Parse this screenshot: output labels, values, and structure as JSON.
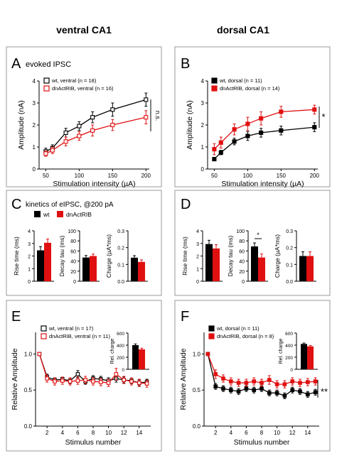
{
  "headers": {
    "left": "ventral CA1",
    "right": "dorsal CA1"
  },
  "colors": {
    "black": "#000000",
    "red": "#e01010",
    "frame": "#999999"
  },
  "panels": {
    "A": {
      "letter": "A",
      "title": "evoked IPSC",
      "legend": [
        "wt, ventral (n = 18)",
        "dnActRIB, ventral (n = 16)"
      ],
      "sig": "n.s."
    },
    "B": {
      "letter": "B",
      "title": "",
      "legend": [
        "wt, dorsal (n = 11)",
        "dnActRIB, dorsal (n = 14)"
      ],
      "sig": "*"
    },
    "C": {
      "letter": "C",
      "title": "kinetics of eIPSC, @200 pA",
      "legend": [
        "wt",
        "dnActRIB"
      ]
    },
    "D": {
      "letter": "D",
      "title": "",
      "legend": []
    },
    "E": {
      "letter": "E",
      "title": "",
      "legend": [
        "wt, ventral (n = 17)",
        "dnActRIB, ventral (n = 11)"
      ],
      "sig": ""
    },
    "F": {
      "letter": "F",
      "title": "",
      "legend": [
        "wt, dorsal (n = 11)",
        "dnActRIB, dorsal (n = 8)"
      ],
      "sig": "**"
    }
  },
  "chart_data": [
    {
      "id": "A",
      "type": "line",
      "xlabel": "Stimulation intensity (µA)",
      "ylabel": "Amplitude (nA)",
      "xlim": [
        40,
        205
      ],
      "ylim": [
        0,
        4
      ],
      "xticks": [
        50,
        100,
        150,
        200
      ],
      "yticks": [
        0,
        1,
        2,
        3,
        4
      ],
      "series": [
        {
          "name": "wt, ventral (n = 18)",
          "color": "#000000",
          "open": true,
          "x": [
            50,
            60,
            80,
            100,
            120,
            150,
            200
          ],
          "y": [
            0.8,
            0.95,
            1.65,
            1.95,
            2.35,
            2.7,
            3.15
          ],
          "err": [
            0.15,
            0.15,
            0.2,
            0.2,
            0.25,
            0.3,
            0.3
          ]
        },
        {
          "name": "dnActRIB, ventral (n = 16)",
          "color": "#e01010",
          "open": true,
          "x": [
            50,
            60,
            80,
            100,
            120,
            150,
            200
          ],
          "y": [
            0.7,
            0.85,
            1.25,
            1.5,
            1.75,
            2.0,
            2.35
          ],
          "err": [
            0.12,
            0.15,
            0.2,
            0.2,
            0.25,
            0.25,
            0.3
          ]
        }
      ]
    },
    {
      "id": "B",
      "type": "line",
      "xlabel": "Stimulation intensity (µA)",
      "ylabel": "Amplitude (nA)",
      "xlim": [
        40,
        205
      ],
      "ylim": [
        0,
        4
      ],
      "xticks": [
        50,
        100,
        150,
        200
      ],
      "yticks": [
        0,
        1,
        2,
        3,
        4
      ],
      "series": [
        {
          "name": "wt, dorsal (n = 11)",
          "color": "#000000",
          "open": false,
          "x": [
            50,
            60,
            80,
            100,
            120,
            150,
            200
          ],
          "y": [
            0.45,
            0.75,
            1.25,
            1.5,
            1.65,
            1.75,
            1.9
          ],
          "err": [
            0.08,
            0.1,
            0.15,
            0.2,
            0.2,
            0.2,
            0.2
          ]
        },
        {
          "name": "dnActRIB, dorsal (n = 14)",
          "color": "#e01010",
          "open": false,
          "x": [
            50,
            60,
            80,
            100,
            120,
            150,
            200
          ],
          "y": [
            0.9,
            1.2,
            1.8,
            2.05,
            2.3,
            2.6,
            2.7
          ],
          "err": [
            0.25,
            0.25,
            0.25,
            0.3,
            0.3,
            0.25,
            0.2
          ]
        }
      ]
    },
    {
      "id": "C1",
      "type": "bar",
      "ylabel": "Rise time (ms)",
      "ylim": [
        0,
        4
      ],
      "yticks": [
        0,
        1,
        2,
        3,
        4
      ],
      "values": [
        2.45,
        3.05
      ],
      "err": [
        0.3,
        0.3
      ]
    },
    {
      "id": "C2",
      "type": "bar",
      "ylabel": "Decay tau (ms)",
      "ylim": [
        0,
        100
      ],
      "yticks": [
        0,
        20,
        40,
        60,
        80,
        100
      ],
      "values": [
        47,
        50
      ],
      "err": [
        4,
        4
      ]
    },
    {
      "id": "C3",
      "type": "bar",
      "ylabel": "Charge (µA*ms)",
      "ylim": [
        0,
        0.3
      ],
      "yticks": [
        0.0,
        0.1,
        0.2,
        0.3
      ],
      "values": [
        0.14,
        0.115
      ],
      "err": [
        0.012,
        0.012
      ]
    },
    {
      "id": "D1",
      "type": "bar",
      "ylabel": "Rise time (ms)",
      "ylim": [
        0,
        4
      ],
      "yticks": [
        0,
        1,
        2,
        3,
        4
      ],
      "values": [
        2.95,
        2.6
      ],
      "err": [
        0.3,
        0.3
      ]
    },
    {
      "id": "D2",
      "type": "bar",
      "ylabel": "Decay tau (ms)",
      "ylim": [
        0,
        100
      ],
      "yticks": [
        0,
        20,
        40,
        60,
        80,
        100
      ],
      "values": [
        69,
        47
      ],
      "err": [
        7,
        7
      ],
      "sig": "*"
    },
    {
      "id": "D3",
      "type": "bar",
      "ylabel": "Charge (µA*ms)",
      "ylim": [
        0,
        0.3
      ],
      "yticks": [
        0.0,
        0.1,
        0.2,
        0.3
      ],
      "values": [
        0.15,
        0.15
      ],
      "err": [
        0.025,
        0.025
      ]
    },
    {
      "id": "E",
      "type": "line",
      "xlabel": "Stimulus number",
      "ylabel": "Relative Amplitude",
      "xlim": [
        0.5,
        15.5
      ],
      "ylim": [
        0,
        1.3
      ],
      "xticks": [
        2,
        4,
        6,
        8,
        10,
        12,
        14
      ],
      "yticks": [
        0.0,
        0.5,
        1.0
      ],
      "series": [
        {
          "name": "wt, ventral (n = 17)",
          "color": "#000000",
          "open": true,
          "x": [
            1,
            2,
            3,
            4,
            5,
            6,
            7,
            8,
            9,
            10,
            11,
            12,
            13,
            14,
            15
          ],
          "y": [
            1.0,
            0.68,
            0.64,
            0.65,
            0.63,
            0.72,
            0.62,
            0.66,
            0.65,
            0.63,
            0.66,
            0.64,
            0.63,
            0.6,
            0.61
          ],
          "err": [
            0,
            0.04,
            0.03,
            0.03,
            0.04,
            0.05,
            0.04,
            0.04,
            0.04,
            0.04,
            0.05,
            0.04,
            0.04,
            0.04,
            0.04
          ]
        },
        {
          "name": "dnActRIB, ventral (n = 11)",
          "color": "#e01010",
          "open": true,
          "x": [
            1,
            2,
            3,
            4,
            5,
            6,
            7,
            8,
            9,
            10,
            11,
            12,
            13,
            14,
            15
          ],
          "y": [
            1.0,
            0.66,
            0.62,
            0.63,
            0.62,
            0.63,
            0.64,
            0.62,
            0.61,
            0.6,
            0.72,
            0.64,
            0.62,
            0.6,
            0.59
          ],
          "err": [
            0,
            0.05,
            0.05,
            0.05,
            0.05,
            0.05,
            0.05,
            0.05,
            0.05,
            0.05,
            0.08,
            0.05,
            0.05,
            0.05,
            0.05
          ]
        }
      ]
    },
    {
      "id": "E_inset",
      "type": "bar",
      "ylabel": "Rel. charge",
      "ylim": [
        0,
        600
      ],
      "yticks": [
        0,
        200,
        400,
        600
      ],
      "values": [
        400,
        330
      ],
      "err": [
        20,
        20
      ]
    },
    {
      "id": "F",
      "type": "line",
      "xlabel": "Stimulus number",
      "ylabel": "Relative Amplitude",
      "xlim": [
        0.5,
        15.5
      ],
      "ylim": [
        0,
        1.3
      ],
      "xticks": [
        2,
        4,
        6,
        8,
        10,
        12,
        14
      ],
      "yticks": [
        0.0,
        0.5,
        1.0
      ],
      "series": [
        {
          "name": "wt, dorsal (n = 11)",
          "color": "#000000",
          "open": false,
          "x": [
            1,
            2,
            3,
            4,
            5,
            6,
            7,
            8,
            9,
            10,
            11,
            12,
            13,
            14,
            15
          ],
          "y": [
            1.0,
            0.55,
            0.52,
            0.5,
            0.48,
            0.52,
            0.5,
            0.52,
            0.46,
            0.46,
            0.42,
            0.5,
            0.48,
            0.44,
            0.47
          ],
          "err": [
            0,
            0.04,
            0.04,
            0.04,
            0.04,
            0.04,
            0.04,
            0.04,
            0.04,
            0.04,
            0.04,
            0.04,
            0.04,
            0.04,
            0.04
          ]
        },
        {
          "name": "dnActRIB, dorsal (n = 8)",
          "color": "#e01010",
          "open": false,
          "x": [
            1,
            2,
            3,
            4,
            5,
            6,
            7,
            8,
            9,
            10,
            11,
            12,
            13,
            14,
            15
          ],
          "y": [
            1.0,
            0.72,
            0.66,
            0.62,
            0.6,
            0.6,
            0.62,
            0.6,
            0.64,
            0.58,
            0.58,
            0.62,
            0.6,
            0.61,
            0.62
          ],
          "err": [
            0,
            0.06,
            0.05,
            0.05,
            0.05,
            0.05,
            0.05,
            0.05,
            0.06,
            0.05,
            0.05,
            0.05,
            0.05,
            0.05,
            0.05
          ]
        }
      ]
    },
    {
      "id": "F_inset",
      "type": "bar",
      "ylabel": "Rel. charge",
      "ylim": [
        0,
        600
      ],
      "yticks": [
        0,
        200,
        400,
        600
      ],
      "values": [
        420,
        380
      ],
      "err": [
        15,
        15
      ]
    }
  ]
}
